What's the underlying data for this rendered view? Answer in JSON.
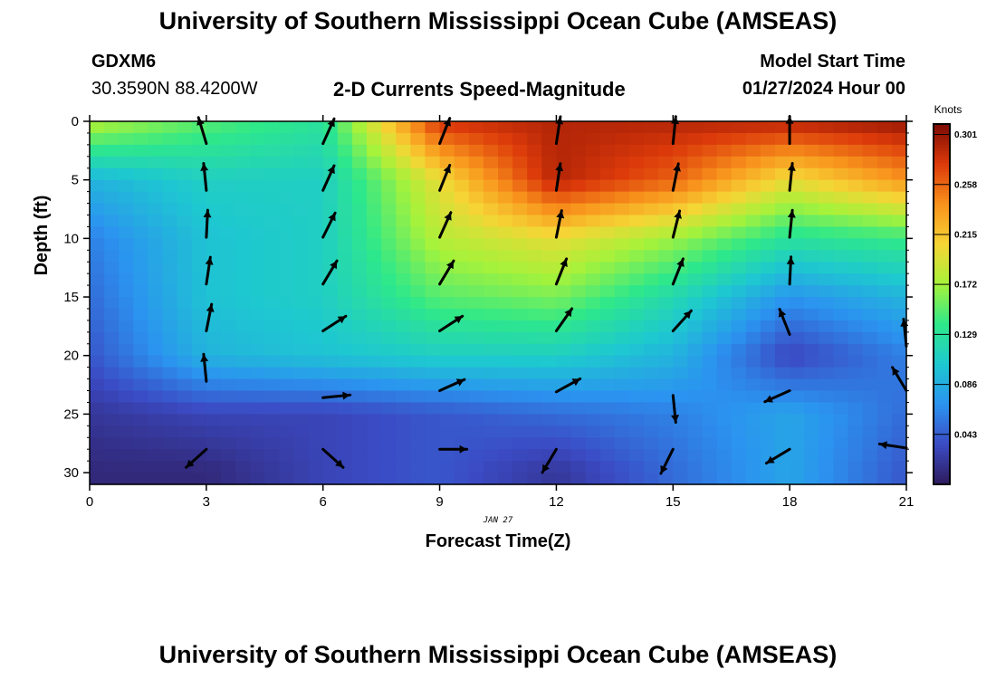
{
  "header": {
    "title": "University of Southern Mississippi Ocean Cube (AMSEAS)",
    "station_id": "GDXM6",
    "station_coords": "30.3590N  88.4200W",
    "subtitle": "2-D Currents Speed-Magnitude",
    "model_label": "Model Start Time",
    "model_time": "01/27/2024 Hour 00"
  },
  "footer": {
    "title": "University of Southern Mississippi Ocean Cube (AMSEAS)"
  },
  "chart_data": {
    "type": "heatmap",
    "xlabel": "Forecast Time(Z)",
    "ylabel": "Depth (ft)",
    "x_ticks": [
      0,
      3,
      6,
      9,
      12,
      15,
      18,
      21
    ],
    "y_ticks": [
      0,
      5,
      10,
      15,
      20,
      25,
      30
    ],
    "xlim": [
      0,
      21
    ],
    "ylim": [
      0,
      31
    ],
    "date_label": "JAN 27",
    "colorbar": {
      "unit": "Knots",
      "ticks": [
        "0.043",
        "0.086",
        "0.129",
        "0.172",
        "0.215",
        "0.258",
        "0.301"
      ],
      "range": [
        0.0,
        0.31
      ],
      "colors": [
        "#2e1b5c",
        "#3b4bc4",
        "#2b93f0",
        "#1ec8d0",
        "#2ee88a",
        "#a6f23a",
        "#f6d535",
        "#f8921c",
        "#dc3a0a",
        "#7b0a04"
      ]
    },
    "speed_grid": {
      "x": [
        0,
        3,
        6,
        9,
        12,
        15,
        18,
        21
      ],
      "depth": [
        0,
        5,
        10,
        15,
        20,
        25,
        30
      ],
      "values": [
        [
          0.18,
          0.15,
          0.13,
          0.28,
          0.29,
          0.29,
          0.29,
          0.3
        ],
        [
          0.09,
          0.11,
          0.11,
          0.2,
          0.29,
          0.26,
          0.2,
          0.24
        ],
        [
          0.06,
          0.1,
          0.11,
          0.18,
          0.2,
          0.17,
          0.13,
          0.14
        ],
        [
          0.05,
          0.1,
          0.11,
          0.15,
          0.16,
          0.12,
          0.07,
          0.09
        ],
        [
          0.04,
          0.09,
          0.1,
          0.11,
          0.11,
          0.09,
          0.03,
          0.06
        ],
        [
          0.02,
          0.03,
          0.03,
          0.04,
          0.05,
          0.06,
          0.08,
          0.05
        ],
        [
          0.01,
          0.01,
          0.03,
          0.04,
          0.02,
          0.05,
          0.08,
          0.04
        ]
      ]
    },
    "vectors": [
      {
        "t": 3,
        "d": 1.9,
        "u": -0.3,
        "v": 1.0
      },
      {
        "t": 3,
        "d": 5.9,
        "u": -0.1,
        "v": 1.0
      },
      {
        "t": 3,
        "d": 9.9,
        "u": 0.05,
        "v": 1.0
      },
      {
        "t": 3,
        "d": 13.9,
        "u": 0.15,
        "v": 1.0
      },
      {
        "t": 3,
        "d": 17.9,
        "u": 0.2,
        "v": 1.0
      },
      {
        "t": 3,
        "d": 22.2,
        "u": -0.1,
        "v": 1.0
      },
      {
        "t": 3,
        "d": 28.0,
        "u": -1.0,
        "v": -0.9
      },
      {
        "t": 6,
        "d": 1.9,
        "u": 0.45,
        "v": 1.0
      },
      {
        "t": 6,
        "d": 5.9,
        "u": 0.45,
        "v": 1.0
      },
      {
        "t": 6,
        "d": 9.9,
        "u": 0.5,
        "v": 1.0
      },
      {
        "t": 6,
        "d": 13.9,
        "u": 0.6,
        "v": 1.0
      },
      {
        "t": 6,
        "d": 17.9,
        "u": 1.0,
        "v": 0.65
      },
      {
        "t": 6,
        "d": 23.6,
        "u": 1.0,
        "v": 0.1
      },
      {
        "t": 6,
        "d": 28.0,
        "u": 1.0,
        "v": -0.9
      },
      {
        "t": 9,
        "d": 1.9,
        "u": 0.4,
        "v": 1.0
      },
      {
        "t": 9,
        "d": 5.9,
        "u": 0.4,
        "v": 1.0
      },
      {
        "t": 9,
        "d": 9.9,
        "u": 0.45,
        "v": 1.0
      },
      {
        "t": 9,
        "d": 13.9,
        "u": 0.6,
        "v": 1.0
      },
      {
        "t": 9,
        "d": 17.9,
        "u": 1.0,
        "v": 0.65
      },
      {
        "t": 9,
        "d": 23.0,
        "u": 1.0,
        "v": 0.45
      },
      {
        "t": 9,
        "d": 28.0,
        "u": 1.0,
        "v": 0.0
      },
      {
        "t": 12,
        "d": 1.9,
        "u": 0.15,
        "v": 1.0
      },
      {
        "t": 12,
        "d": 5.9,
        "u": 0.15,
        "v": 1.0
      },
      {
        "t": 12,
        "d": 9.9,
        "u": 0.2,
        "v": 1.0
      },
      {
        "t": 12,
        "d": 13.9,
        "u": 0.4,
        "v": 1.0
      },
      {
        "t": 12,
        "d": 17.9,
        "u": 0.7,
        "v": 1.0
      },
      {
        "t": 12,
        "d": 23.1,
        "u": 1.0,
        "v": 0.55
      },
      {
        "t": 12,
        "d": 28.0,
        "u": -0.6,
        "v": -1.0
      },
      {
        "t": 15,
        "d": 1.9,
        "u": 0.1,
        "v": 1.0
      },
      {
        "t": 15,
        "d": 5.9,
        "u": 0.2,
        "v": 1.0
      },
      {
        "t": 15,
        "d": 9.9,
        "u": 0.25,
        "v": 1.0
      },
      {
        "t": 15,
        "d": 13.9,
        "u": 0.4,
        "v": 1.0
      },
      {
        "t": 15,
        "d": 17.9,
        "u": 0.9,
        "v": 1.0
      },
      {
        "t": 15,
        "d": 23.4,
        "u": 0.1,
        "v": -1.0
      },
      {
        "t": 15,
        "d": 28.0,
        "u": -0.5,
        "v": -1.0
      },
      {
        "t": 18,
        "d": 1.9,
        "u": 0.0,
        "v": 1.0
      },
      {
        "t": 18,
        "d": 5.9,
        "u": 0.1,
        "v": 1.0
      },
      {
        "t": 18,
        "d": 9.9,
        "u": 0.1,
        "v": 1.0
      },
      {
        "t": 18,
        "d": 13.9,
        "u": 0.05,
        "v": 1.0
      },
      {
        "t": 18,
        "d": 18.2,
        "u": -0.4,
        "v": 1.0
      },
      {
        "t": 18,
        "d": 23.0,
        "u": -1.0,
        "v": -0.45
      },
      {
        "t": 18,
        "d": 28.0,
        "u": -1.0,
        "v": -0.6
      },
      {
        "t": 21,
        "d": 19.2,
        "u": -0.1,
        "v": 1.0
      },
      {
        "t": 21,
        "d": 23.0,
        "u": -0.6,
        "v": 1.0
      },
      {
        "t": 21,
        "d": 27.9,
        "u": -1.0,
        "v": 0.15
      }
    ]
  }
}
